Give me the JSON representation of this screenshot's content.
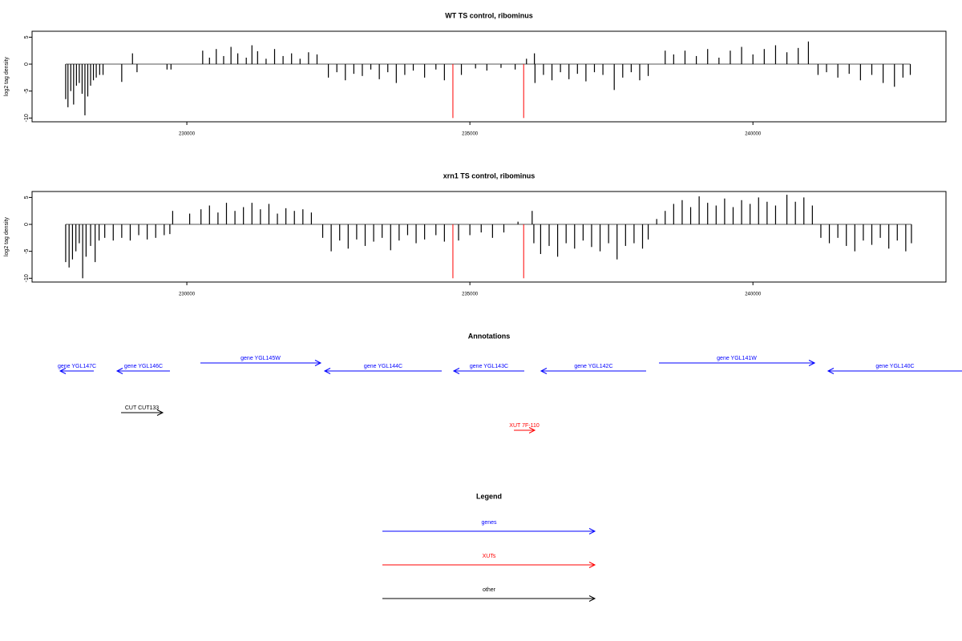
{
  "chart_data": [
    {
      "type": "bar",
      "title": "WT TS control, ribominus",
      "ylabel": "log2 tag density",
      "xlim": [
        227266,
        243410
      ],
      "ylim": [
        -10.7,
        6.1
      ],
      "xticks": [
        230000,
        235000,
        240000
      ],
      "yticks": [
        -10,
        -5,
        0,
        5
      ],
      "series": [
        {
          "color": "#000000",
          "x": [
            227860,
            227900,
            227950,
            228000,
            228050,
            228100,
            228150,
            228200,
            228250,
            228300,
            228350,
            228400,
            228460,
            228520,
            228850,
            229040,
            229120,
            229650,
            229720,
            230280,
            230400,
            230520,
            230650,
            230780,
            230900,
            231050,
            231150,
            231250,
            231400,
            231550,
            231700,
            231850,
            232000,
            232150,
            232300,
            232500,
            232650,
            232800,
            232950,
            233100,
            233250,
            233400,
            233550,
            233700,
            233850,
            234000,
            234200,
            234400,
            234550,
            234850,
            235100,
            235300,
            235550,
            235800,
            236000,
            236140,
            236150,
            236300,
            236450,
            236600,
            236750,
            236900,
            237050,
            237200,
            237350,
            237550,
            237700,
            237850,
            238000,
            238150,
            238450,
            238600,
            238800,
            239000,
            239200,
            239400,
            239600,
            239800,
            240000,
            240200,
            240400,
            240600,
            240800,
            240980,
            241150,
            241300,
            241500,
            241700,
            241900,
            242100,
            242300,
            242500,
            242650,
            242780
          ],
          "values": [
            -6.5,
            -8,
            -5,
            -7.5,
            -4,
            -3.5,
            -5.5,
            -9.5,
            -6,
            -4,
            -3,
            -2.5,
            -2,
            -2,
            -3.3,
            2,
            -1.5,
            -1,
            -1,
            2.5,
            1.2,
            2.8,
            1.5,
            3.2,
            2,
            1.2,
            3.5,
            2.4,
            1,
            2.8,
            1.5,
            2,
            1,
            2.2,
            1.8,
            -2.5,
            -1.5,
            -3,
            -1.8,
            -2.2,
            -1,
            -2.8,
            -1.5,
            -3.5,
            -2,
            -1.2,
            -2.5,
            -1,
            -3,
            -2,
            -0.8,
            -1.2,
            -0.7,
            -1,
            1,
            2,
            -3.5,
            -2,
            -3,
            -1.5,
            -2.8,
            -1.8,
            -3.2,
            -1.5,
            -2,
            -4.8,
            -2.5,
            -1.5,
            -3,
            -2.2,
            2.5,
            1.8,
            2.5,
            1.5,
            2.8,
            1.2,
            2.5,
            3.2,
            1.8,
            2.8,
            3.5,
            2.2,
            3,
            4.2,
            -2,
            -1.5,
            -2.5,
            -1.8,
            -3,
            -2,
            -3.5,
            -4.2,
            -2.5,
            -2
          ]
        },
        {
          "color": "#ff0000",
          "x": [
            234700,
            235950
          ],
          "values": [
            -10,
            -10
          ]
        }
      ]
    },
    {
      "type": "bar",
      "title": "xrn1 TS control, ribominus",
      "ylabel": "log2 tag density",
      "xlim": [
        227266,
        243410
      ],
      "ylim": [
        -10.7,
        6.1
      ],
      "xticks": [
        230000,
        235000,
        240000
      ],
      "yticks": [
        -10,
        -5,
        0,
        5
      ],
      "series": [
        {
          "color": "#000000",
          "x": [
            227860,
            227920,
            227980,
            228040,
            228100,
            228160,
            228220,
            228300,
            228380,
            228450,
            228550,
            228700,
            228850,
            229000,
            229150,
            229300,
            229450,
            229600,
            229700,
            229750,
            230050,
            230250,
            230400,
            230550,
            230700,
            230850,
            231000,
            231150,
            231300,
            231450,
            231600,
            231750,
            231900,
            232050,
            232200,
            232400,
            232550,
            232700,
            232850,
            233000,
            233150,
            233300,
            233450,
            233600,
            233750,
            233900,
            234050,
            234200,
            234400,
            234550,
            234800,
            235000,
            235200,
            235400,
            235600,
            235850,
            236100,
            236130,
            236250,
            236400,
            236550,
            236700,
            236850,
            237000,
            237150,
            237300,
            237450,
            237600,
            237750,
            237900,
            238050,
            238150,
            238300,
            238450,
            238600,
            238750,
            238900,
            239050,
            239200,
            239350,
            239500,
            239650,
            239800,
            239950,
            240100,
            240250,
            240400,
            240600,
            240750,
            240900,
            241050,
            241200,
            241350,
            241500,
            241650,
            241800,
            241950,
            242100,
            242250,
            242400,
            242550,
            242700,
            242800
          ],
          "values": [
            -7,
            -8,
            -6.5,
            -5,
            -3.5,
            -10,
            -6,
            -4,
            -7,
            -3,
            -2.5,
            -3,
            -2.5,
            -3,
            -2,
            -2.8,
            -2.5,
            -2,
            -1.8,
            2.5,
            2,
            2.8,
            3.5,
            2.2,
            4,
            2.5,
            3.2,
            4,
            2.8,
            3.8,
            2,
            3,
            2.5,
            2.8,
            2.2,
            -2.5,
            -5,
            -3,
            -4.5,
            -2.8,
            -4,
            -3.2,
            -2.5,
            -4.8,
            -3,
            -2,
            -3.5,
            -2.8,
            -2,
            -3.2,
            -3,
            -2,
            -1.5,
            -2.5,
            -1.5,
            0.5,
            2.5,
            -3.5,
            -5.5,
            -4,
            -6,
            -3.5,
            -4.5,
            -3,
            -4.2,
            -5,
            -3.5,
            -6.5,
            -4,
            -3.5,
            -4.5,
            -2.8,
            1,
            2.5,
            3.8,
            4.5,
            3.2,
            5.2,
            4,
            3.5,
            4.8,
            3.2,
            4.5,
            3.8,
            5,
            4.2,
            3.5,
            5.5,
            4.2,
            5,
            3.5,
            -2.5,
            -3.5,
            -2.5,
            -4,
            -5,
            -3,
            -3.8,
            -2.5,
            -4.5,
            -3,
            -5,
            -3.5
          ]
        },
        {
          "color": "#ff0000",
          "x": [
            234700,
            235950
          ],
          "values": [
            -10,
            -10
          ]
        }
      ]
    }
  ],
  "annotations": {
    "title": "Annotations",
    "xlim": [
      227266,
      243690
    ],
    "features": [
      {
        "label": "gene YGL147C",
        "start": 227762,
        "end": 228356,
        "strand": "-",
        "color": "#0000ff",
        "row": 1
      },
      {
        "label": "gene YGL146C",
        "start": 228767,
        "end": 229701,
        "strand": "-",
        "color": "#0000ff",
        "row": 1
      },
      {
        "label": "gene YGL145W",
        "start": 230239,
        "end": 232363,
        "strand": "+",
        "color": "#0000ff",
        "row": 0
      },
      {
        "label": "gene YGL144C",
        "start": 232434,
        "end": 234501,
        "strand": "-",
        "color": "#0000ff",
        "row": 1
      },
      {
        "label": "gene YGL143C",
        "start": 234713,
        "end": 235959,
        "strand": "-",
        "color": "#0000ff",
        "row": 1
      },
      {
        "label": "gene YGL142C",
        "start": 236256,
        "end": 238111,
        "strand": "-",
        "color": "#0000ff",
        "row": 1
      },
      {
        "label": "gene YGL141W",
        "start": 238338,
        "end": 241085,
        "strand": "+",
        "color": "#0000ff",
        "row": 0
      },
      {
        "label": "gene YGL140C",
        "start": 241325,
        "end": 243690,
        "strand": "-",
        "color": "#0000ff",
        "row": 1
      },
      {
        "label": "CUT CUT133",
        "start": 228838,
        "end": 229574,
        "strand": "+",
        "color": "#000000",
        "row": 2
      },
      {
        "label": "XUT 7F-110",
        "start": 235776,
        "end": 236144,
        "strand": "+",
        "color": "#ff0000",
        "row": 3
      }
    ]
  },
  "legend": {
    "title": "Legend",
    "items": [
      {
        "label": "genes",
        "color": "#0000ff"
      },
      {
        "label": "XUTs",
        "color": "#ff0000"
      },
      {
        "label": "other",
        "color": "#000000"
      }
    ]
  }
}
